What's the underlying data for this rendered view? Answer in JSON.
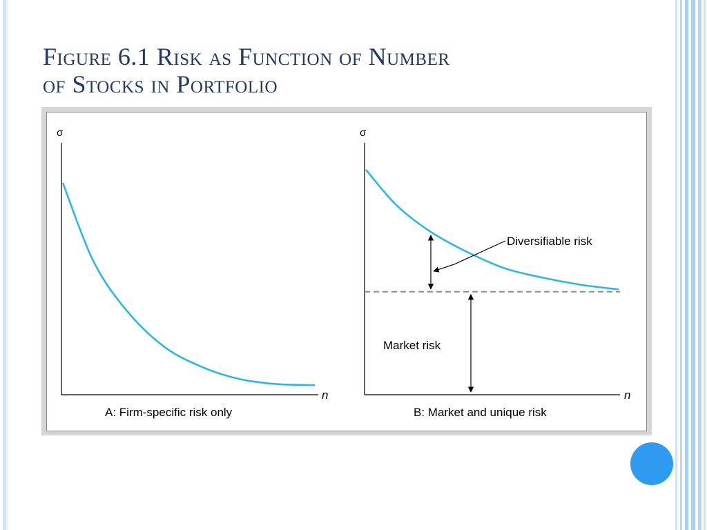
{
  "slide": {
    "title_line1": "Figure 6.1 Risk as Function of Number",
    "title_line2": "of Stocks in Portfolio"
  },
  "theme": {
    "title_color": "#1f3864",
    "curve_color": "#29b6e8",
    "dashed_line_color": "#8c8c8c",
    "accent_circle_color": "#2e9af0",
    "stripe_color": "#a9d0f0"
  },
  "chart_data": [
    {
      "type": "line",
      "ylabel": "σ",
      "xlabel": "n",
      "caption": "A:  Firm-specific risk only",
      "series": [
        {
          "points": [
            [
              0,
              1.0
            ],
            [
              0.12,
              0.62
            ],
            [
              0.25,
              0.38
            ],
            [
              0.4,
              0.2
            ],
            [
              0.55,
              0.1
            ],
            [
              0.7,
              0.04
            ],
            [
              0.85,
              0.015
            ],
            [
              1.0,
              0.01
            ]
          ]
        }
      ]
    },
    {
      "type": "line",
      "ylabel": "σ",
      "xlabel": "n",
      "caption": "B:  Market and unique risk",
      "market_risk_level": 0.43,
      "series": [
        {
          "points": [
            [
              0,
              1.0
            ],
            [
              0.12,
              0.85
            ],
            [
              0.25,
              0.74
            ],
            [
              0.4,
              0.65
            ],
            [
              0.55,
              0.58
            ],
            [
              0.7,
              0.54
            ],
            [
              0.85,
              0.51
            ],
            [
              1.0,
              0.49
            ]
          ]
        }
      ],
      "annotations": {
        "diversifiable": "Diversifiable risk",
        "market": "Market risk"
      }
    }
  ]
}
